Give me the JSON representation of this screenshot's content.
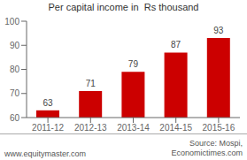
{
  "chart_data": {
    "type": "bar",
    "title": "Per capital income in  Rs thousand",
    "categories": [
      "2011-12",
      "2012-13",
      "2013-14",
      "2014-15",
      "2015-16"
    ],
    "values": [
      63,
      71,
      79,
      87,
      93
    ],
    "color": "#cc0000",
    "ylim": [
      60,
      100
    ],
    "yticks": [
      60,
      70,
      80,
      90,
      100
    ],
    "grid": false,
    "data_labels": true,
    "annotations": [
      "www.equitymaster.com",
      "Source: Mospi,\nEconomictimes.com"
    ]
  }
}
